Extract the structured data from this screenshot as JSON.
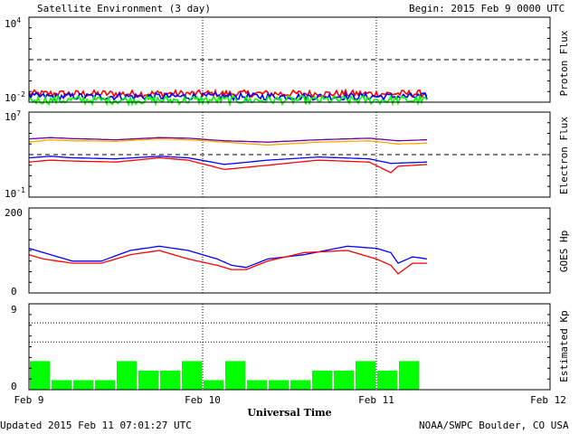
{
  "header": {
    "title": "Satellite Environment (3 day)",
    "begin": "Begin:  2015 Feb 9 0000 UTC"
  },
  "footer": {
    "updated": "Updated 2015 Feb 11 07:01:27 UTC",
    "credit": "NOAA/SWPC Boulder, CO USA"
  },
  "x_axis": {
    "label": "Universal Time",
    "ticks": [
      "Feb 9",
      "Feb 10",
      "Feb 11",
      "Feb 12"
    ],
    "range_hours": [
      0,
      72
    ],
    "data_end_hour": 55
  },
  "colors": {
    "red": "#ff0000",
    "blue": "#0000ff",
    "green": "#00ff00",
    "orange": "#ffa500",
    "purple": "#660099"
  },
  "chart_data": [
    {
      "type": "line",
      "ylabel": "Proton Flux",
      "scale": "log",
      "ylim": [
        0.01,
        10000
      ],
      "ytick_labels": {
        "top_base": "10",
        "top_exp": "4",
        "bottom_base": "10",
        "bottom_exp": "-2"
      },
      "threshold": 10,
      "series": [
        {
          "color": "red",
          "level": 0.04,
          "noise": 0.25,
          "points": []
        },
        {
          "color": "blue",
          "level": 0.025,
          "noise": 0.25,
          "points": []
        },
        {
          "color": "green",
          "level": 0.014,
          "noise": 0.3,
          "points": []
        }
      ]
    },
    {
      "type": "line",
      "ylabel": "Electron Flux",
      "scale": "log",
      "ylim": [
        0.1,
        10000000
      ],
      "ytick_labels": {
        "top_base": "10",
        "top_exp": "7",
        "bottom_base": "10",
        "bottom_exp": "-1"
      },
      "threshold": 1000,
      "series": [
        {
          "color": "purple",
          "points": [
            [
              0,
              30000
            ],
            [
              3,
              40000
            ],
            [
              6,
              32000
            ],
            [
              12,
              25000
            ],
            [
              18,
              40000
            ],
            [
              22,
              35000
            ],
            [
              27,
              20000
            ],
            [
              33,
              15000
            ],
            [
              40,
              25000
            ],
            [
              47,
              35000
            ],
            [
              51,
              20000
            ],
            [
              55,
              25000
            ]
          ]
        },
        {
          "color": "orange",
          "points": [
            [
              0,
              15000
            ],
            [
              3,
              25000
            ],
            [
              6,
              20000
            ],
            [
              12,
              18000
            ],
            [
              18,
              30000
            ],
            [
              22,
              25000
            ],
            [
              27,
              15000
            ],
            [
              33,
              8000
            ],
            [
              40,
              15000
            ],
            [
              47,
              20000
            ],
            [
              51,
              10000
            ],
            [
              55,
              12000
            ]
          ]
        },
        {
          "color": "blue",
          "points": [
            [
              0,
              500
            ],
            [
              3,
              700
            ],
            [
              6,
              500
            ],
            [
              12,
              400
            ],
            [
              18,
              700
            ],
            [
              22,
              500
            ],
            [
              27,
              120
            ],
            [
              33,
              300
            ],
            [
              40,
              600
            ],
            [
              47,
              400
            ],
            [
              50,
              150
            ],
            [
              55,
              200
            ]
          ]
        },
        {
          "color": "red",
          "points": [
            [
              0,
              200
            ],
            [
              3,
              300
            ],
            [
              6,
              250
            ],
            [
              12,
              200
            ],
            [
              18,
              500
            ],
            [
              22,
              300
            ],
            [
              27,
              40
            ],
            [
              33,
              100
            ],
            [
              40,
              300
            ],
            [
              47,
              200
            ],
            [
              50,
              20
            ],
            [
              51,
              80
            ],
            [
              55,
              120
            ]
          ]
        }
      ]
    },
    {
      "type": "line",
      "ylabel": "GOES Hp",
      "scale": "linear",
      "ylim": [
        0,
        200
      ],
      "ytick_labels": {
        "top": "200",
        "bottom": "0"
      },
      "series": [
        {
          "color": "blue",
          "points": [
            [
              0,
              105
            ],
            [
              2,
              95
            ],
            [
              6,
              75
            ],
            [
              10,
              75
            ],
            [
              14,
              100
            ],
            [
              18,
              110
            ],
            [
              22,
              100
            ],
            [
              26,
              80
            ],
            [
              28,
              65
            ],
            [
              30,
              60
            ],
            [
              33,
              80
            ],
            [
              38,
              90
            ],
            [
              44,
              110
            ],
            [
              48,
              105
            ],
            [
              50,
              95
            ],
            [
              51,
              70
            ],
            [
              53,
              85
            ],
            [
              55,
              80
            ]
          ]
        },
        {
          "color": "red",
          "points": [
            [
              0,
              90
            ],
            [
              2,
              80
            ],
            [
              6,
              70
            ],
            [
              10,
              70
            ],
            [
              14,
              90
            ],
            [
              18,
              100
            ],
            [
              22,
              80
            ],
            [
              26,
              65
            ],
            [
              28,
              55
            ],
            [
              30,
              55
            ],
            [
              33,
              75
            ],
            [
              38,
              95
            ],
            [
              44,
              100
            ],
            [
              48,
              80
            ],
            [
              50,
              65
            ],
            [
              51,
              45
            ],
            [
              53,
              70
            ],
            [
              55,
              70
            ]
          ]
        }
      ]
    },
    {
      "type": "bar",
      "ylabel": "Estimated Kp",
      "scale": "linear",
      "ylim": [
        0,
        9
      ],
      "ytick_labels": {
        "top": "9",
        "bottom": "0"
      },
      "hgrid": [
        5,
        7,
        9
      ],
      "bar_width_hours": 3,
      "bar_color": "green",
      "values": [
        3,
        1,
        1,
        1,
        3,
        2,
        2,
        3,
        1,
        3,
        1,
        1,
        1,
        2,
        2,
        3,
        2,
        3
      ]
    }
  ]
}
